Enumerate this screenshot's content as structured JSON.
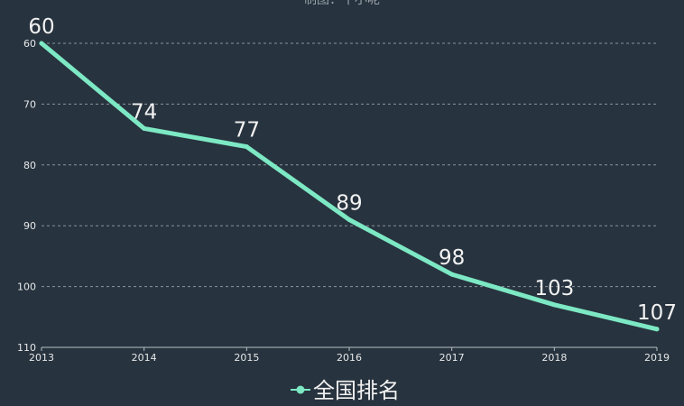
{
  "subtitle": "制图：十小呢",
  "chart_data": {
    "type": "line",
    "categories": [
      "2013",
      "2014",
      "2015",
      "2016",
      "2017",
      "2018",
      "2019"
    ],
    "series": [
      {
        "name": "全国排名",
        "values": [
          60,
          74,
          77,
          89,
          98,
          103,
          107
        ]
      }
    ],
    "yticks": [
      "60",
      "70",
      "80",
      "90",
      "100",
      "110"
    ],
    "ylim": [
      60,
      110
    ],
    "y_inverted": true,
    "grid": true,
    "legend_position": "bottom-center",
    "line_color": "#7de8c4"
  }
}
